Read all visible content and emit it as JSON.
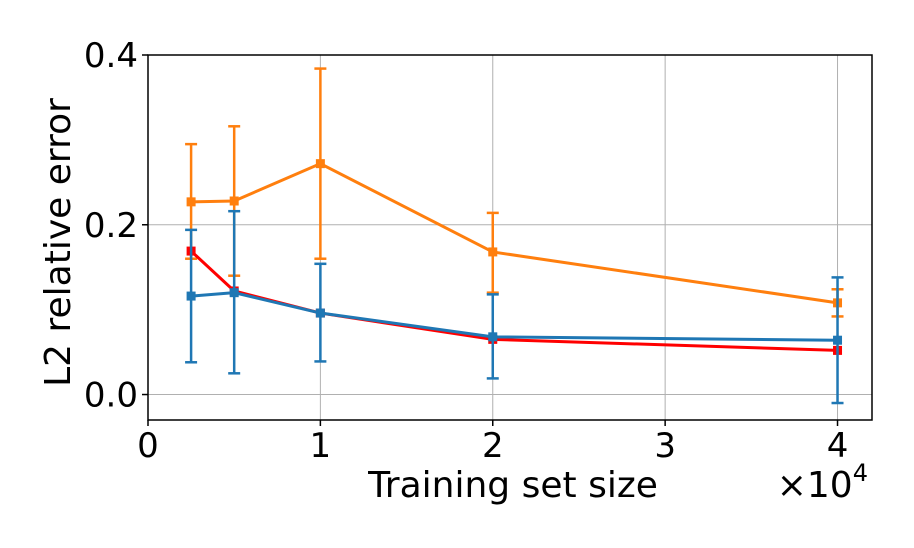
{
  "chart_data": {
    "type": "line",
    "xlabel": "Training set size",
    "ylabel": "L2 relative error",
    "x_multiplier_label": "×10",
    "x_multiplier_exponent": "4",
    "xlim": [
      0,
      4.2
    ],
    "ylim": [
      -0.03,
      0.4
    ],
    "x_ticks": [
      0,
      1,
      2,
      3,
      4
    ],
    "x_tick_labels": [
      "0",
      "1",
      "2",
      "3",
      "4"
    ],
    "y_ticks": [
      0.0,
      0.2,
      0.4
    ],
    "y_tick_labels": [
      "0.0",
      "0.2",
      "0.4"
    ],
    "grid": true,
    "series": [
      {
        "color": "#ff7f0e",
        "marker": "square",
        "errorbars": true,
        "x": [
          0.25,
          0.5,
          1,
          2,
          4
        ],
        "values": [
          0.227,
          0.228,
          0.272,
          0.168,
          0.108
        ],
        "err_low": [
          0.067,
          0.088,
          0.112,
          0.048,
          0.016
        ],
        "err_high": [
          0.068,
          0.088,
          0.112,
          0.046,
          0.016
        ]
      },
      {
        "color": "#ff0000",
        "marker": "square",
        "errorbars": false,
        "x": [
          0.25,
          0.5,
          1,
          2,
          4
        ],
        "values": [
          0.169,
          0.122,
          0.096,
          0.065,
          0.052
        ]
      },
      {
        "color": "#1f77b4",
        "marker": "square",
        "errorbars": true,
        "x": [
          0.25,
          0.5,
          1,
          2,
          4
        ],
        "values": [
          0.116,
          0.12,
          0.096,
          0.068,
          0.064
        ],
        "err_low": [
          0.078,
          0.095,
          0.057,
          0.049,
          0.074
        ],
        "err_high": [
          0.078,
          0.096,
          0.058,
          0.05,
          0.074
        ]
      }
    ]
  }
}
